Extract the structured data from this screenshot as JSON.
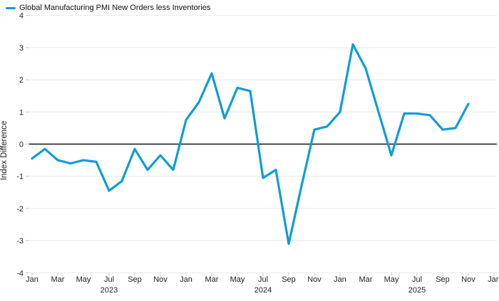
{
  "legend": {
    "items": [
      {
        "label": "Global Manufacturing PMI New Orders less Inventories",
        "color": "#0f9dd8"
      }
    ]
  },
  "chart_data": {
    "type": "line",
    "title": "",
    "ylabel": "Index Difference",
    "ylim": [
      -4,
      4
    ],
    "y_ticks": [
      4,
      3,
      2,
      1,
      0,
      -1,
      -2,
      -3,
      -4
    ],
    "grid": "horizontal",
    "zero_line": true,
    "legend_position": "top-left",
    "x": [
      "Jan 2023",
      "Feb 2023",
      "Mar 2023",
      "Apr 2023",
      "May 2023",
      "Jun 2023",
      "Jul 2023",
      "Aug 2023",
      "Sep 2023",
      "Oct 2023",
      "Nov 2023",
      "Dec 2023",
      "Jan 2024",
      "Feb 2024",
      "Mar 2024",
      "Apr 2024",
      "May 2024",
      "Jun 2024",
      "Jul 2024",
      "Aug 2024",
      "Sep 2024",
      "Oct 2024",
      "Nov 2024",
      "Dec 2024",
      "Jan 2025",
      "Feb 2025",
      "Mar 2025",
      "Apr 2025",
      "May 2025",
      "Jun 2025",
      "Jul 2025",
      "Aug 2025",
      "Sep 2025",
      "Oct 2025",
      "Nov 2025"
    ],
    "x_tick_labels": [
      "Jan",
      "Mar",
      "May",
      "Jul",
      "Sep",
      "Nov",
      "Jan",
      "Mar",
      "May",
      "Jul",
      "Sep",
      "Nov",
      "Jan",
      "Mar",
      "May",
      "Jul",
      "Sep",
      "Nov",
      "Jan"
    ],
    "x_tick_month_step": 2,
    "year_labels": [
      {
        "text": "2023",
        "month_index": 6
      },
      {
        "text": "2024",
        "month_index": 18
      },
      {
        "text": "2025",
        "month_index": 30
      }
    ],
    "series": [
      {
        "name": "Global Manufacturing PMI New Orders less Inventories",
        "color": "#0f9dd8",
        "values": [
          -0.45,
          -0.15,
          -0.5,
          -0.6,
          -0.5,
          -0.55,
          -1.45,
          -1.15,
          -0.15,
          -0.8,
          -0.35,
          -0.8,
          0.75,
          1.3,
          2.2,
          0.8,
          1.75,
          1.65,
          -1.05,
          -0.8,
          -3.1,
          -1.3,
          0.45,
          0.55,
          1.0,
          3.1,
          2.35,
          1.0,
          -0.35,
          0.95,
          0.95,
          0.9,
          0.45,
          0.5,
          1.25
        ]
      }
    ]
  }
}
